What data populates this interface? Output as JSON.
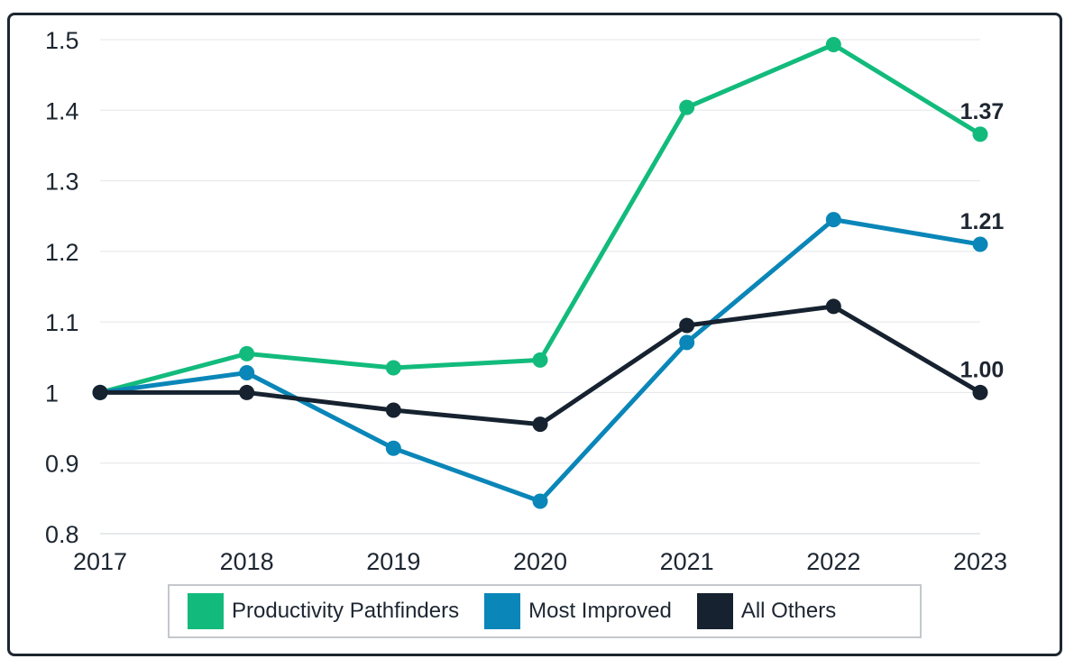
{
  "chart_data": {
    "type": "line",
    "x": [
      "2017",
      "2018",
      "2019",
      "2020",
      "2021",
      "2022",
      "2023"
    ],
    "ylim": [
      0.8,
      1.5
    ],
    "yticks": [
      "1.5",
      "1.4",
      "1.3",
      "1.2",
      "1.1",
      "1",
      "0.9",
      "0.8"
    ],
    "ytick_values": [
      1.5,
      1.4,
      1.3,
      1.2,
      1.1,
      1.0,
      0.9,
      0.8
    ],
    "grid": true,
    "legend_position": "bottom",
    "series": [
      {
        "name": "Productivity Pathfinders",
        "color": "#12bb7c",
        "values": [
          1.0,
          1.055,
          1.035,
          1.046,
          1.404,
          1.493,
          1.366
        ],
        "end_label": "1.37"
      },
      {
        "name": "Most Improved",
        "color": "#0a86b8",
        "values": [
          1.0,
          1.028,
          0.921,
          0.846,
          1.071,
          1.245,
          1.21
        ],
        "end_label": "1.21"
      },
      {
        "name": "All Others",
        "color": "#16222f",
        "values": [
          1.0,
          1.0,
          0.975,
          0.955,
          1.095,
          1.122,
          1.0
        ],
        "end_label": "1.00"
      }
    ]
  }
}
